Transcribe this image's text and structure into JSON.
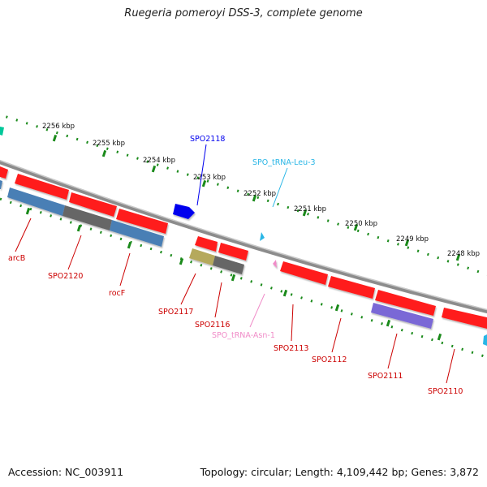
{
  "title": "Ruegeria pomeroyi DSS-3, complete genome",
  "footer": {
    "accession": "Accession: NC_003911",
    "summary": "Topology: circular; Length: 4,109,442 bp; Genes: 3,872"
  },
  "scale_labels": [
    "2256 kbp",
    "2255 kbp",
    "2254 kbp",
    "2253 kbp",
    "2252 kbp",
    "2251 kbp",
    "2250 kbp",
    "2249 kbp",
    "2248 kbp"
  ],
  "gene_labels": {
    "spo2118": "SPO2118",
    "trna_leu3": "SPO_tRNA-Leu-3",
    "arcb": "arcB",
    "spo2120": "SPO2120",
    "rocf": "rocF",
    "spo2117": "SPO2117",
    "spo2116": "SPO2116",
    "trna_asn1": "SPO_tRNA-Asn-1",
    "spo2113": "SPO2113",
    "spo2112": "SPO2112",
    "spo2111": "SPO2111",
    "spo2110": "SPO2110"
  },
  "colors": {
    "backbone": "#8c8c8c",
    "cds_red": "#ff1a1a",
    "tick_green": "#1a8a1a",
    "blue_gene": "#0000ee",
    "cyan_trna": "#29b6e6",
    "pink_trna": "#f08cc8",
    "steelblue": "#4a7fb5",
    "dark_gray": "#666666",
    "olive": "#b5a95c",
    "purple": "#7a68d6"
  }
}
